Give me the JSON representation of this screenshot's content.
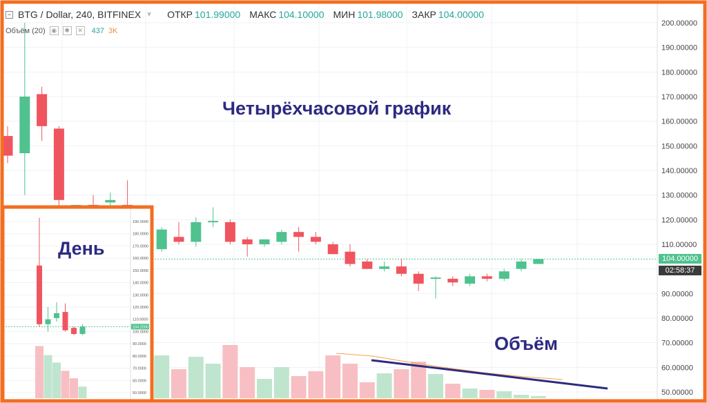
{
  "header": {
    "symbol": "BTG / Dollar, 240, BITFINEX",
    "open_label": "ОТКР",
    "open": "101.99000",
    "high_label": "МАКС",
    "high": "104.10000",
    "low_label": "МИН",
    "low": "101.98000",
    "close_label": "ЗАКР",
    "close": "104.00000"
  },
  "volume_header": {
    "label": "Объём (20)",
    "value1": "437",
    "value2": "3K"
  },
  "annotations": {
    "main": "Четырёхчасовой график",
    "daily": "День",
    "volume": "Объём"
  },
  "price_tags": {
    "last": "104.00000",
    "timer": "02:58:37"
  },
  "colors": {
    "up": "#4fc28f",
    "down": "#f0555f",
    "frame": "#f26f22",
    "text_accent": "#2c2a80",
    "volume_up": "#bfe5cf",
    "volume_down": "#f7bfc3"
  },
  "chart_data": [
    {
      "type": "candlestick",
      "timeframe": "240",
      "y_axis_ticks": [
        "200.00000",
        "190.00000",
        "180.00000",
        "170.00000",
        "160.00000",
        "150.00000",
        "140.00000",
        "130.00000",
        "120.00000",
        "110.00000",
        "100.00000",
        "90.00000",
        "80.00000",
        "70.00000",
        "60.00000",
        "50.00000"
      ],
      "ylim": [
        48,
        204
      ],
      "candles": [
        {
          "o": 154,
          "h": 158,
          "l": 143,
          "c": 146
        },
        {
          "o": 147,
          "h": 200,
          "l": 130,
          "c": 170
        },
        {
          "o": 171,
          "h": 174,
          "l": 152,
          "c": 158
        },
        {
          "o": 157,
          "h": 158,
          "l": 120,
          "c": 128
        },
        {
          "o": 124,
          "h": 126,
          "l": 118,
          "c": 126
        },
        {
          "o": 126,
          "h": 130,
          "l": 121,
          "c": 125
        },
        {
          "o": 127,
          "h": 131,
          "l": 122,
          "c": 128
        },
        {
          "o": 126,
          "h": 136,
          "l": 106,
          "c": 123
        },
        {
          "o": 118,
          "h": 120,
          "l": 103,
          "c": 107
        },
        {
          "o": 108,
          "h": 117,
          "l": 107,
          "c": 116
        },
        {
          "o": 113,
          "h": 119,
          "l": 110,
          "c": 111
        },
        {
          "o": 111,
          "h": 121,
          "l": 109,
          "c": 119
        },
        {
          "o": 119,
          "h": 125,
          "l": 117,
          "c": 119.5
        },
        {
          "o": 119,
          "h": 120,
          "l": 110,
          "c": 111
        },
        {
          "o": 112,
          "h": 113,
          "l": 105,
          "c": 110
        },
        {
          "o": 110,
          "h": 112,
          "l": 109,
          "c": 112
        },
        {
          "o": 111,
          "h": 116,
          "l": 110,
          "c": 115
        },
        {
          "o": 115,
          "h": 117,
          "l": 107,
          "c": 113
        },
        {
          "o": 113,
          "h": 115,
          "l": 110,
          "c": 111
        },
        {
          "o": 110,
          "h": 111,
          "l": 106,
          "c": 106
        },
        {
          "o": 107,
          "h": 110,
          "l": 101,
          "c": 102
        },
        {
          "o": 103,
          "h": 104,
          "l": 100,
          "c": 100
        },
        {
          "o": 100,
          "h": 103,
          "l": 99,
          "c": 101
        },
        {
          "o": 101,
          "h": 104,
          "l": 97,
          "c": 98
        },
        {
          "o": 98,
          "h": 99,
          "l": 91,
          "c": 94
        },
        {
          "o": 96,
          "h": 97,
          "l": 88,
          "c": 96.5
        },
        {
          "o": 96,
          "h": 97,
          "l": 93,
          "c": 94.5
        },
        {
          "o": 94,
          "h": 98,
          "l": 93,
          "c": 97
        },
        {
          "o": 97,
          "h": 98,
          "l": 95,
          "c": 96
        },
        {
          "o": 96,
          "h": 100,
          "l": 95,
          "c": 99
        },
        {
          "o": 100,
          "h": 104,
          "l": 99,
          "c": 103
        },
        {
          "o": 102,
          "h": 104.1,
          "l": 102,
          "c": 104
        }
      ],
      "volume": [
        0,
        0,
        0,
        0,
        0,
        0,
        0,
        70,
        54,
        62,
        42,
        60,
        50,
        77,
        45,
        28,
        45,
        32,
        39,
        62,
        50,
        23,
        36,
        42,
        53,
        35,
        21,
        14,
        12,
        10,
        5,
        3
      ],
      "last_price": 104
    },
    {
      "type": "candlestick",
      "timeframe": "day",
      "y_axis_ticks": [
        "190.0000",
        "180.0000",
        "170.0000",
        "160.0000",
        "150.0000",
        "140.0000",
        "130.0000",
        "120.0000",
        "110.0000",
        "100.0000",
        "90.0000",
        "80.0000",
        "70.0000",
        "60.0000",
        "50.0000"
      ],
      "ylim": [
        48,
        196
      ],
      "candles": [
        {
          "o": 154,
          "h": 193,
          "l": 104,
          "c": 106
        },
        {
          "o": 106,
          "h": 120,
          "l": 100,
          "c": 110
        },
        {
          "o": 111,
          "h": 124,
          "l": 108,
          "c": 115
        },
        {
          "o": 116,
          "h": 123,
          "l": 100,
          "c": 101
        },
        {
          "o": 103,
          "h": 104,
          "l": 97,
          "c": 98
        },
        {
          "o": 98,
          "h": 106,
          "l": 97,
          "c": 104
        }
      ],
      "volume": [
        63,
        52,
        43,
        33,
        24,
        14
      ],
      "last_price": "104.2000"
    }
  ]
}
